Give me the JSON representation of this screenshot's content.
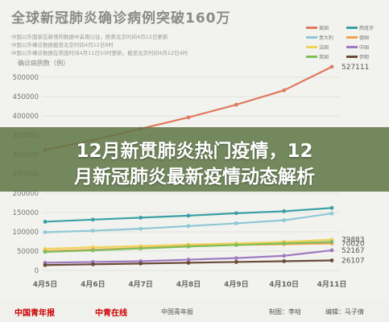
{
  "title": "全球新冠肺炎确诊病例突破160万",
  "subtitles": [
    "中国以外国家在新增的数据中采用以往，欧美北京时间4月12日更新",
    "中国以外确诊数据截至北京时间4月12日8时",
    "中国以外确诊数据在美国时间4月11日10时更新，截至北京时间4月12日4时"
  ],
  "overlay": {
    "line1": "12月新贯肺炎热门疫情，12",
    "line2": "月新冠肺炎最新疫情动态解析"
  },
  "footer": {
    "logo1": "中国青年报",
    "logo2": "中青在线",
    "logo3": "中国青年报",
    "producer": "制图：李晗",
    "editor": "编辑：马子倩"
  },
  "colors": {
    "US": "#e07a5f",
    "Spain": "#3ba0a6",
    "Italy": "#8fc7d6",
    "France": "#f0d25a",
    "Germany": "#f5a04a",
    "China": "#a07ac0",
    "UK": "#7fbf5a",
    "Iran": "#6a4a3a",
    "overlay": "#5f7646"
  },
  "legend": [
    {
      "name": "美国",
      "color": "#e07a5f"
    },
    {
      "name": "西班牙",
      "color": "#3ba0a6"
    },
    {
      "name": "意大利",
      "color": "#8fc7d6"
    },
    {
      "name": "德国",
      "color": "#f5a04a"
    },
    {
      "name": "法国",
      "color": "#f0d25a"
    },
    {
      "name": "中国",
      "color": "#a07ac0"
    },
    {
      "name": "英国",
      "color": "#7fbf5a"
    },
    {
      "name": "伊朗",
      "color": "#6a4a3a"
    }
  ],
  "chart_data": {
    "type": "line",
    "title": "全球新冠肺炎确诊病例突破160万",
    "ylabel": "确诊病例数（例）",
    "categories": [
      "4月5日",
      "4月6日",
      "4月7日",
      "4月8日",
      "4月9日",
      "4月10日",
      "4月11日"
    ],
    "ylim": [
      0,
      500000
    ],
    "yticks": [
      "0",
      "50000",
      "100000",
      "150000",
      "200000",
      "250000",
      "300000",
      "350000",
      "400000",
      "450000",
      "500000"
    ],
    "grid": true,
    "series": [
      {
        "name": "美国",
        "color": "#e07a5f",
        "values": [
          312237,
          337072,
          366667,
          396223,
          429052,
          466299,
          527111
        ],
        "end_label": "527111"
      },
      {
        "name": "西班牙",
        "color": "#3ba0a6",
        "values": [
          126168,
          131646,
          136675,
          141942,
          148220,
          153222,
          161852
        ],
        "end_label": ""
      },
      {
        "name": "意大利",
        "color": "#8fc7d6",
        "values": [
          99000,
          103000,
          108000,
          115000,
          122000,
          130000,
          147577
        ],
        "end_label": ""
      },
      {
        "name": "法国",
        "color": "#f0d25a",
        "values": [
          56000,
          60000,
          63000,
          67000,
          70000,
          74000,
          79883
        ],
        "end_label": "79883"
      },
      {
        "name": "德国",
        "color": "#f5a04a",
        "values": [
          50000,
          54000,
          58000,
          63000,
          66000,
          68000,
          70020
        ],
        "end_label": "70020"
      },
      {
        "name": "英国",
        "color": "#7fbf5a",
        "values": [
          48000,
          52000,
          57000,
          62000,
          66000,
          70000,
          74000
        ],
        "end_label": ""
      },
      {
        "name": "中国",
        "color": "#a07ac0",
        "values": [
          20000,
          22000,
          24000,
          28000,
          32000,
          38000,
          52167
        ],
        "end_label": "52167"
      },
      {
        "name": "伊朗",
        "color": "#6a4a3a",
        "values": [
          14000,
          16000,
          18000,
          20000,
          22000,
          24000,
          26107
        ],
        "end_label": "26107"
      }
    ]
  }
}
